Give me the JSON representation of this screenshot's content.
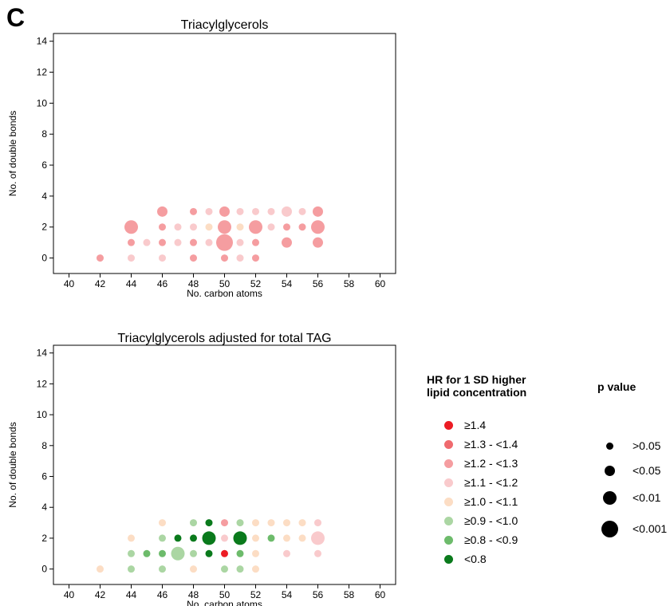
{
  "panel_label": "C",
  "categories": [
    {
      "label": "≥1.4",
      "color": "#ec1c24"
    },
    {
      "label": "≥1.3 - <1.4",
      "color": "#ef6a6e"
    },
    {
      "label": "≥1.2 - <1.3",
      "color": "#f59da0"
    },
    {
      "label": "≥1.1 - <1.2",
      "color": "#f9cacc"
    },
    {
      "label": "≥1.0 - <1.1",
      "color": "#fcddc4"
    },
    {
      "label": "≥0.9 - <1.0",
      "color": "#abd6a3"
    },
    {
      "label": "≥0.8 - <0.9",
      "color": "#6dbb6b"
    },
    {
      "label": "<0.8",
      "color": "#0a7a1c"
    }
  ],
  "pvalues": [
    ">0.05",
    "<0.05",
    "<0.01",
    "<0.001"
  ],
  "legend": {
    "hr_title_line1": "HR for 1 SD higher",
    "hr_title_line2": "lipid concentration",
    "p_title": "p value"
  },
  "chart_data": [
    {
      "type": "scatter",
      "title": "Triacylglycerols",
      "xlabel": "No. carbon atoms",
      "ylabel": "No. of double bonds",
      "xlim": [
        39,
        61
      ],
      "ylim": [
        -1,
        14.5
      ],
      "xticks": [
        40,
        42,
        44,
        46,
        48,
        50,
        52,
        54,
        56,
        58,
        60
      ],
      "yticks": [
        0,
        2,
        4,
        6,
        8,
        10,
        12,
        14
      ],
      "point_fields": [
        "x",
        "y",
        "hr_category",
        "p_category"
      ],
      "points": [
        [
          42,
          0,
          2,
          0
        ],
        [
          44,
          0,
          3,
          0
        ],
        [
          46,
          0,
          3,
          0
        ],
        [
          48,
          0,
          2,
          0
        ],
        [
          50,
          0,
          2,
          0
        ],
        [
          51,
          0,
          3,
          0
        ],
        [
          52,
          0,
          2,
          0
        ],
        [
          44,
          1,
          2,
          0
        ],
        [
          45,
          1,
          3,
          0
        ],
        [
          46,
          1,
          2,
          0
        ],
        [
          47,
          1,
          3,
          0
        ],
        [
          48,
          1,
          2,
          0
        ],
        [
          49,
          1,
          3,
          0
        ],
        [
          50,
          1,
          2,
          3
        ],
        [
          51,
          1,
          3,
          0
        ],
        [
          52,
          1,
          2,
          0
        ],
        [
          54,
          1,
          2,
          1
        ],
        [
          56,
          1,
          2,
          1
        ],
        [
          44,
          2,
          2,
          2
        ],
        [
          46,
          2,
          2,
          0
        ],
        [
          47,
          2,
          3,
          0
        ],
        [
          48,
          2,
          3,
          0
        ],
        [
          49,
          2,
          4,
          0
        ],
        [
          50,
          2,
          2,
          2
        ],
        [
          51,
          2,
          4,
          0
        ],
        [
          52,
          2,
          2,
          2
        ],
        [
          53,
          2,
          3,
          0
        ],
        [
          54,
          2,
          2,
          0
        ],
        [
          55,
          2,
          2,
          0
        ],
        [
          56,
          2,
          2,
          2
        ],
        [
          46,
          3,
          2,
          1
        ],
        [
          48,
          3,
          2,
          0
        ],
        [
          49,
          3,
          3,
          0
        ],
        [
          50,
          3,
          2,
          1
        ],
        [
          51,
          3,
          3,
          0
        ],
        [
          52,
          3,
          3,
          0
        ],
        [
          53,
          3,
          3,
          0
        ],
        [
          54,
          3,
          3,
          1
        ],
        [
          55,
          3,
          3,
          0
        ],
        [
          56,
          3,
          2,
          1
        ]
      ]
    },
    {
      "type": "scatter",
      "title": "Triacylglycerols adjusted for total TAG",
      "xlabel": "No. carbon atoms",
      "ylabel": "No. of double bonds",
      "xlim": [
        39,
        61
      ],
      "ylim": [
        -1,
        14.5
      ],
      "xticks": [
        40,
        42,
        44,
        46,
        48,
        50,
        52,
        54,
        56,
        58,
        60
      ],
      "yticks": [
        0,
        2,
        4,
        6,
        8,
        10,
        12,
        14
      ],
      "point_fields": [
        "x",
        "y",
        "hr_category",
        "p_category"
      ],
      "points": [
        [
          42,
          0,
          4,
          0
        ],
        [
          44,
          0,
          5,
          0
        ],
        [
          46,
          0,
          5,
          0
        ],
        [
          48,
          0,
          4,
          0
        ],
        [
          50,
          0,
          5,
          0
        ],
        [
          51,
          0,
          5,
          0
        ],
        [
          52,
          0,
          4,
          0
        ],
        [
          44,
          1,
          5,
          0
        ],
        [
          45,
          1,
          6,
          0
        ],
        [
          46,
          1,
          6,
          0
        ],
        [
          47,
          1,
          5,
          2
        ],
        [
          48,
          1,
          5,
          0
        ],
        [
          49,
          1,
          7,
          0
        ],
        [
          50,
          1,
          0,
          0
        ],
        [
          51,
          1,
          6,
          0
        ],
        [
          52,
          1,
          4,
          0
        ],
        [
          54,
          1,
          3,
          0
        ],
        [
          56,
          1,
          3,
          0
        ],
        [
          44,
          2,
          4,
          0
        ],
        [
          46,
          2,
          5,
          0
        ],
        [
          47,
          2,
          7,
          0
        ],
        [
          48,
          2,
          7,
          0
        ],
        [
          49,
          2,
          7,
          2
        ],
        [
          50,
          2,
          3,
          0
        ],
        [
          51,
          2,
          7,
          2
        ],
        [
          52,
          2,
          4,
          0
        ],
        [
          53,
          2,
          6,
          0
        ],
        [
          54,
          2,
          4,
          0
        ],
        [
          55,
          2,
          4,
          0
        ],
        [
          56,
          2,
          3,
          2
        ],
        [
          46,
          3,
          4,
          0
        ],
        [
          48,
          3,
          5,
          0
        ],
        [
          49,
          3,
          7,
          0
        ],
        [
          50,
          3,
          2,
          0
        ],
        [
          51,
          3,
          5,
          0
        ],
        [
          52,
          3,
          4,
          0
        ],
        [
          53,
          3,
          4,
          0
        ],
        [
          54,
          3,
          4,
          0
        ],
        [
          55,
          3,
          4,
          0
        ],
        [
          56,
          3,
          3,
          0
        ]
      ]
    }
  ]
}
